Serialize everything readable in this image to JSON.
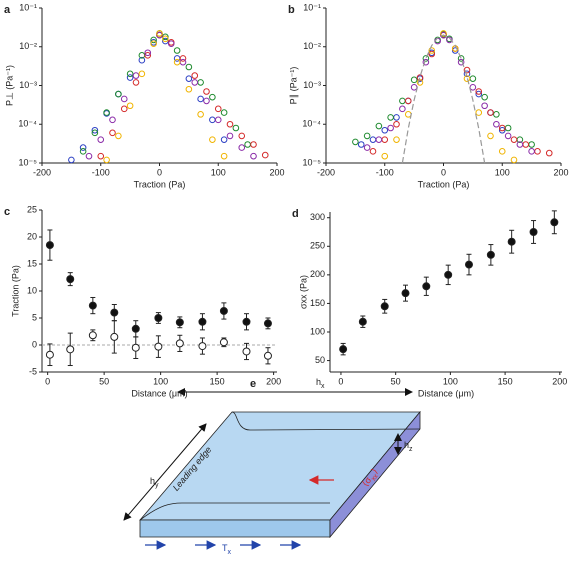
{
  "chart_data": [
    {
      "type": "scatter",
      "label": "a",
      "xlabel": "Traction (Pa)",
      "ylabel": "P⊥ (Pa⁻¹)",
      "log_y": true,
      "xlim": [
        -200,
        200
      ],
      "xticks": [
        -200,
        -100,
        0,
        100,
        200
      ],
      "ylim": [
        1e-05,
        0.1
      ],
      "yticks": [
        {
          "value": 1e-05,
          "label": "10⁻⁵"
        },
        {
          "value": 0.0001,
          "label": "10⁻⁴"
        },
        {
          "value": 0.001,
          "label": "10⁻³"
        },
        {
          "value": 0.01,
          "label": "10⁻²"
        },
        {
          "value": 0.1,
          "label": "10⁻¹"
        }
      ],
      "series": [
        {
          "color": "#2b3fc4",
          "x": [
            -150,
            -130,
            -110,
            -90,
            -70,
            -50,
            -30,
            -10,
            0,
            10,
            30,
            50,
            70,
            90,
            110
          ],
          "values": [
            1.2e-05,
            2.5e-05,
            7e-05,
            0.00019,
            0.0006,
            0.0016,
            0.0045,
            0.013,
            0.02,
            0.014,
            0.005,
            0.0015,
            0.00045,
            0.00013,
            4e-05
          ]
        },
        {
          "color": "#1e8a2e",
          "x": [
            -130,
            -110,
            -90,
            -70,
            -50,
            -30,
            -10,
            0,
            10,
            30,
            50,
            70,
            90,
            110,
            130,
            150
          ],
          "values": [
            2e-05,
            6e-05,
            0.0002,
            0.0006,
            0.002,
            0.006,
            0.015,
            0.022,
            0.018,
            0.008,
            0.003,
            0.0012,
            0.0005,
            0.0002,
            8e-05,
            3e-05
          ]
        },
        {
          "color": "#d42a2a",
          "x": [
            -100,
            -80,
            -60,
            -40,
            -20,
            0,
            20,
            40,
            60,
            80,
            100,
            120,
            140,
            160,
            180
          ],
          "values": [
            1.5e-05,
            6e-05,
            0.00025,
            0.0012,
            0.006,
            0.02,
            0.013,
            0.005,
            0.0018,
            0.0007,
            0.00025,
            0.0001,
            5e-05,
            3e-05,
            1.6e-05
          ]
        },
        {
          "color": "#8a2ba8",
          "x": [
            -120,
            -100,
            -80,
            -60,
            -40,
            -20,
            0,
            20,
            40,
            60,
            80,
            100,
            120,
            140,
            160
          ],
          "values": [
            1.5e-05,
            4e-05,
            0.00013,
            0.00045,
            0.0018,
            0.007,
            0.02,
            0.012,
            0.004,
            0.0012,
            0.0004,
            0.00013,
            5e-05,
            2.5e-05,
            1.5e-05
          ]
        },
        {
          "color": "#f0b400",
          "x": [
            -90,
            -70,
            -50,
            -30,
            -10,
            0,
            10,
            30,
            50,
            70,
            90,
            110
          ],
          "values": [
            1.2e-05,
            5e-05,
            0.0003,
            0.002,
            0.012,
            0.022,
            0.016,
            0.004,
            0.0008,
            0.00018,
            4e-05,
            1.5e-05
          ]
        }
      ]
    },
    {
      "type": "scatter",
      "label": "b",
      "xlabel": "Traction (Pa)",
      "ylabel": "P∥ (Pa⁻¹)",
      "log_y": true,
      "xlim": [
        -200,
        200
      ],
      "xticks": [
        -200,
        -100,
        0,
        100,
        200
      ],
      "ylim": [
        1e-05,
        0.1
      ],
      "yticks": [
        {
          "value": 1e-05,
          "label": "10⁻⁵"
        },
        {
          "value": 0.0001,
          "label": "10⁻⁴"
        },
        {
          "value": 0.001,
          "label": "10⁻³"
        },
        {
          "value": 0.01,
          "label": "10⁻²"
        },
        {
          "value": 0.1,
          "label": "10⁻¹"
        }
      ],
      "series": [
        {
          "color": "#2b3fc4",
          "x": [
            -140,
            -120,
            -100,
            -80,
            -60,
            -40,
            -20,
            0,
            20,
            40,
            60,
            80,
            100
          ],
          "values": [
            3e-05,
            4e-05,
            7e-05,
            0.00015,
            0.0004,
            0.0015,
            0.007,
            0.02,
            0.008,
            0.002,
            0.0006,
            0.0002,
            7e-05
          ]
        },
        {
          "color": "#1e8a2e",
          "x": [
            -150,
            -130,
            -110,
            -90,
            -70,
            -50,
            -30,
            -10,
            0,
            10,
            30,
            50,
            70,
            90,
            110,
            130,
            150
          ],
          "values": [
            3.5e-05,
            5e-05,
            9e-05,
            0.00015,
            0.0004,
            0.0014,
            0.005,
            0.015,
            0.021,
            0.016,
            0.005,
            0.0015,
            0.0005,
            0.00018,
            8e-05,
            4e-05,
            3e-05
          ]
        },
        {
          "color": "#d42a2a",
          "x": [
            -120,
            -100,
            -80,
            -60,
            -40,
            -20,
            0,
            20,
            40,
            60,
            80,
            100,
            120,
            140,
            160,
            180
          ],
          "values": [
            2e-05,
            4e-05,
            0.0001,
            0.0004,
            0.0016,
            0.0065,
            0.02,
            0.009,
            0.0025,
            0.0007,
            0.0002,
            8e-05,
            4e-05,
            3e-05,
            2e-05,
            1.8e-05
          ]
        },
        {
          "color": "#8a2ba8",
          "x": [
            -130,
            -110,
            -90,
            -70,
            -50,
            -30,
            -10,
            0,
            10,
            30,
            50,
            70,
            90,
            110,
            130,
            150
          ],
          "values": [
            2.5e-05,
            4e-05,
            8e-05,
            0.00025,
            0.0009,
            0.004,
            0.014,
            0.02,
            0.015,
            0.004,
            0.0009,
            0.0003,
            0.0001,
            5e-05,
            3e-05,
            2e-05
          ]
        },
        {
          "color": "#f0b400",
          "x": [
            -100,
            -80,
            -60,
            -40,
            -20,
            0,
            20,
            40,
            60,
            80,
            100,
            120
          ],
          "values": [
            1.5e-05,
            4e-05,
            0.00018,
            0.0012,
            0.008,
            0.022,
            0.009,
            0.0015,
            0.0002,
            5e-05,
            2e-05,
            1.2e-05
          ]
        },
        {
          "color": "#999999",
          "style": "dashed",
          "x": [
            -70,
            -60,
            -50,
            -40,
            -30,
            -20,
            -10,
            0,
            10,
            20,
            30,
            40,
            50,
            60,
            70
          ],
          "values": [
            1e-05,
            7.7e-05,
            0.00042,
            0.0017,
            0.005,
            0.0108,
            0.017,
            0.02,
            0.017,
            0.0108,
            0.005,
            0.0017,
            0.00042,
            7.7e-05,
            1e-05
          ]
        }
      ]
    },
    {
      "type": "errorbar",
      "label": "c",
      "xlabel": "Distance (μm)",
      "ylabel": "Traction (Pa)",
      "xlim": [
        -5,
        203
      ],
      "xticks": [
        0,
        50,
        100,
        150,
        200
      ],
      "ylim": [
        -5,
        25
      ],
      "yticks": [
        -5,
        0,
        5,
        10,
        15,
        20,
        25
      ],
      "series": [
        {
          "fill": "#111111",
          "x": [
            2,
            20,
            40,
            59,
            78,
            98,
            117,
            137,
            156,
            176,
            195
          ],
          "values": [
            18.5,
            12.2,
            7.3,
            6,
            3,
            5,
            4.2,
            4.3,
            6.3,
            4.3,
            4
          ],
          "errors": [
            2.8,
            1.2,
            1.5,
            1.5,
            1.5,
            1,
            1,
            1.5,
            1.5,
            1.5,
            1
          ]
        },
        {
          "fill": "none",
          "x": [
            2,
            20,
            40,
            59,
            78,
            98,
            117,
            137,
            156,
            176,
            195
          ],
          "values": [
            -1.8,
            -0.8,
            1.8,
            1.5,
            -0.5,
            -0.3,
            0.3,
            -0.2,
            0.5,
            -1.2,
            -2
          ],
          "errors": [
            2,
            3,
            1,
            3,
            2,
            2,
            1.5,
            1.5,
            0.8,
            1.5,
            1.5
          ]
        }
      ]
    },
    {
      "type": "errorbar",
      "label": "d",
      "xlabel": "Distance (μm)",
      "ylabel": "σxx (Pa)",
      "xlim": [
        -10,
        202
      ],
      "xticks": [
        0,
        50,
        100,
        150,
        200
      ],
      "ylim": [
        30,
        310
      ],
      "yticks": [
        50,
        100,
        150,
        200,
        250,
        300
      ],
      "series": [
        {
          "fill": "#111111",
          "x": [
            2,
            20,
            40,
            59,
            78,
            98,
            117,
            137,
            156,
            176,
            195
          ],
          "values": [
            70,
            118,
            145,
            168,
            180,
            200,
            218,
            235,
            258,
            275,
            292
          ],
          "errors": [
            10,
            10,
            12,
            14,
            16,
            17,
            18,
            18,
            20,
            20,
            20
          ]
        }
      ]
    }
  ],
  "diagram": {
    "label": "e",
    "hx": {
      "main": "h",
      "sub": "x"
    },
    "hy": {
      "main": "h",
      "sub": "y"
    },
    "hz": {
      "main": "h",
      "sub": "z"
    },
    "edge": "Leading edge",
    "sigma": {
      "main": "⟨σ",
      "sub": "xx",
      "end": "⟩"
    },
    "tx": {
      "main": "T",
      "sub": "x"
    }
  }
}
